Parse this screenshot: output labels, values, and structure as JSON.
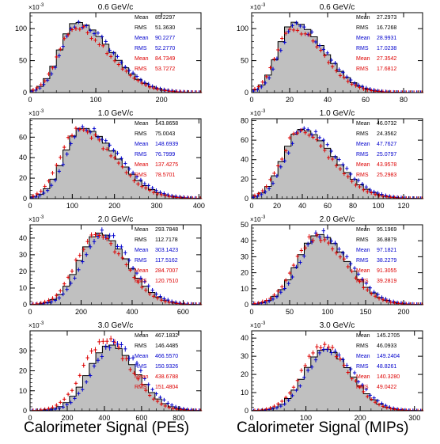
{
  "figure": {
    "exponent_label": "×10",
    "exponent_power": "-3",
    "footer_left": "Calorimeter Signal (PEs)",
    "footer_right": "Calorimeter Signal (MIPs)",
    "colors": {
      "histogram_fill": "#c0c0c0",
      "histogram_line": "#000000",
      "blue": "#0000cc",
      "red": "#dd0000"
    }
  },
  "chart_data": [
    {
      "type": "histogram",
      "column": "PEs",
      "title": "0.6 GeV/c",
      "xlim": [
        0,
        260
      ],
      "ylim": [
        0,
        125
      ],
      "xticks": [
        0,
        100,
        200
      ],
      "yticks": [
        0,
        50,
        100
      ],
      "peak_x": 70,
      "peak_y": 110,
      "sigma_left": 25,
      "sigma_right": 52,
      "blue_shift": 3,
      "blue_scale": 0.97,
      "red_shift": -2,
      "red_scale": 0.92,
      "stats": [
        {
          "label": "Mean",
          "value": "85.2297",
          "color": "black"
        },
        {
          "label": "RMS",
          "value": "51.3630",
          "color": "black"
        },
        {
          "label": "Mean",
          "value": "90.2277",
          "color": "blue"
        },
        {
          "label": "RMS",
          "value": "52.2770",
          "color": "blue"
        },
        {
          "label": "Mean",
          "value": "84.7349",
          "color": "red"
        },
        {
          "label": "RMS",
          "value": "53.7272",
          "color": "red"
        }
      ]
    },
    {
      "type": "histogram",
      "column": "MIPs",
      "title": "0.6 GeV/c",
      "xlim": [
        0,
        90
      ],
      "ylim": [
        0,
        125
      ],
      "xticks": [
        0,
        20,
        40,
        60,
        80
      ],
      "yticks": [
        0,
        50,
        100
      ],
      "peak_x": 22,
      "peak_y": 110,
      "sigma_left": 8,
      "sigma_right": 16,
      "blue_shift": 1,
      "blue_scale": 0.95,
      "red_shift": -1,
      "red_scale": 0.92,
      "stats": [
        {
          "label": "Mean",
          "value": "27.2973",
          "color": "black"
        },
        {
          "label": "RMS",
          "value": "16.7268",
          "color": "black"
        },
        {
          "label": "Mean",
          "value": "28.9931",
          "color": "blue"
        },
        {
          "label": "RMS",
          "value": "17.0238",
          "color": "blue"
        },
        {
          "label": "Mean",
          "value": "27.3542",
          "color": "red"
        },
        {
          "label": "RMS",
          "value": "17.6812",
          "color": "red"
        }
      ]
    },
    {
      "type": "histogram",
      "column": "PEs",
      "title": "1.0 GeV/c",
      "xlim": [
        0,
        405
      ],
      "ylim": [
        0,
        78
      ],
      "xticks": [
        0,
        100,
        200,
        300,
        400
      ],
      "yticks": [
        0,
        20,
        40,
        60
      ],
      "peak_x": 122,
      "peak_y": 69,
      "sigma_left": 42,
      "sigma_right": 82,
      "blue_shift": 6,
      "blue_scale": 1.0,
      "red_shift": -8,
      "red_scale": 0.97,
      "stats": [
        {
          "label": "Mean",
          "value": "143.8658",
          "color": "black"
        },
        {
          "label": "RMS",
          "value": "75.0043",
          "color": "black"
        },
        {
          "label": "Mean",
          "value": "148.6939",
          "color": "blue"
        },
        {
          "label": "RMS",
          "value": "76.7999",
          "color": "blue"
        },
        {
          "label": "Mean",
          "value": "137.4275",
          "color": "red"
        },
        {
          "label": "RMS",
          "value": "78.5701",
          "color": "red"
        }
      ]
    },
    {
      "type": "histogram",
      "column": "MIPs",
      "title": "1.0 GeV/c",
      "xlim": [
        0,
        135
      ],
      "ylim": [
        0,
        82
      ],
      "xticks": [
        0,
        20,
        40,
        60,
        80,
        100,
        120
      ],
      "yticks": [
        0,
        20,
        40,
        60,
        80
      ],
      "peak_x": 39,
      "peak_y": 71,
      "sigma_left": 14,
      "sigma_right": 26,
      "blue_shift": 2,
      "blue_scale": 1.0,
      "red_shift": -2,
      "red_scale": 0.94,
      "stats": [
        {
          "label": "Mean",
          "value": "46.0732",
          "color": "black"
        },
        {
          "label": "RMS",
          "value": "24.3562",
          "color": "black"
        },
        {
          "label": "Mean",
          "value": "47.7627",
          "color": "blue"
        },
        {
          "label": "RMS",
          "value": "25.0797",
          "color": "blue"
        },
        {
          "label": "Mean",
          "value": "43.9578",
          "color": "red"
        },
        {
          "label": "RMS",
          "value": "25.2983",
          "color": "red"
        }
      ]
    },
    {
      "type": "histogram",
      "column": "PEs",
      "title": "2.0 GeV/c",
      "xlim": [
        0,
        670
      ],
      "ylim": [
        0,
        48
      ],
      "xticks": [
        0,
        200,
        400,
        600
      ],
      "yticks": [
        0,
        10,
        20,
        30,
        40
      ],
      "peak_x": 270,
      "peak_y": 43,
      "sigma_left": 78,
      "sigma_right": 110,
      "blue_shift": 12,
      "blue_scale": 1.0,
      "red_shift": -12,
      "red_scale": 0.98,
      "stats": [
        {
          "label": "Mean",
          "value": "293.7848",
          "color": "black"
        },
        {
          "label": "RMS",
          "value": "112.7178",
          "color": "black"
        },
        {
          "label": "Mean",
          "value": "303.1423",
          "color": "blue"
        },
        {
          "label": "RMS",
          "value": "117.5162",
          "color": "blue"
        },
        {
          "label": "Mean",
          "value": "284.7007",
          "color": "red"
        },
        {
          "label": "RMS",
          "value": "120.7510",
          "color": "red"
        }
      ]
    },
    {
      "type": "histogram",
      "column": "MIPs",
      "title": "2.0 GeV/c",
      "xlim": [
        0,
        225
      ],
      "ylim": [
        0,
        50
      ],
      "xticks": [
        0,
        50,
        100,
        150,
        200
      ],
      "yticks": [
        0,
        10,
        20,
        30,
        40,
        50
      ],
      "peak_x": 88,
      "peak_y": 44,
      "sigma_left": 28,
      "sigma_right": 38,
      "blue_shift": 3,
      "blue_scale": 1.0,
      "red_shift": -3,
      "red_scale": 0.98,
      "stats": [
        {
          "label": "Mean",
          "value": "95.1969",
          "color": "black"
        },
        {
          "label": "RMS",
          "value": "36.8879",
          "color": "black"
        },
        {
          "label": "Mean",
          "value": "97.1821",
          "color": "blue"
        },
        {
          "label": "RMS",
          "value": "38.2279",
          "color": "blue"
        },
        {
          "label": "Mean",
          "value": "91.3055",
          "color": "red"
        },
        {
          "label": "RMS",
          "value": "39.2819",
          "color": "red"
        }
      ]
    },
    {
      "type": "histogram",
      "column": "PEs",
      "title": "3.0 GeV/c",
      "xlim": [
        0,
        920
      ],
      "ylim": [
        0,
        40
      ],
      "xticks": [
        0,
        200,
        400,
        600,
        800
      ],
      "yticks": [
        0,
        10,
        20,
        30
      ],
      "peak_x": 430,
      "peak_y": 33,
      "sigma_left": 115,
      "sigma_right": 140,
      "blue_shift": 22,
      "blue_scale": 1.0,
      "red_shift": -28,
      "red_scale": 1.06,
      "stats": [
        {
          "label": "Mean",
          "value": "467.1832",
          "color": "black"
        },
        {
          "label": "RMS",
          "value": "146.4485",
          "color": "black"
        },
        {
          "label": "Mean",
          "value": "466.5570",
          "color": "blue"
        },
        {
          "label": "RMS",
          "value": "150.9326",
          "color": "blue"
        },
        {
          "label": "Mean",
          "value": "438.6788",
          "color": "red"
        },
        {
          "label": "RMS",
          "value": "151.4804",
          "color": "red"
        }
      ]
    },
    {
      "type": "histogram",
      "column": "MIPs",
      "title": "3.0 GeV/c",
      "xlim": [
        0,
        315
      ],
      "ylim": [
        0,
        44
      ],
      "xticks": [
        0,
        100,
        200,
        300
      ],
      "yticks": [
        0,
        10,
        20,
        30,
        40
      ],
      "peak_x": 135,
      "peak_y": 34,
      "sigma_left": 38,
      "sigma_right": 48,
      "blue_shift": 5,
      "blue_scale": 1.0,
      "red_shift": -5,
      "red_scale": 1.05,
      "stats": [
        {
          "label": "Mean",
          "value": "145.2705",
          "color": "black"
        },
        {
          "label": "RMS",
          "value": "46.0933",
          "color": "black"
        },
        {
          "label": "Mean",
          "value": "149.2404",
          "color": "blue"
        },
        {
          "label": "RMS",
          "value": "48.8261",
          "color": "blue"
        },
        {
          "label": "Mean",
          "value": "140.3280",
          "color": "red"
        },
        {
          "label": "RMS",
          "value": "49.0422",
          "color": "red"
        }
      ]
    }
  ]
}
